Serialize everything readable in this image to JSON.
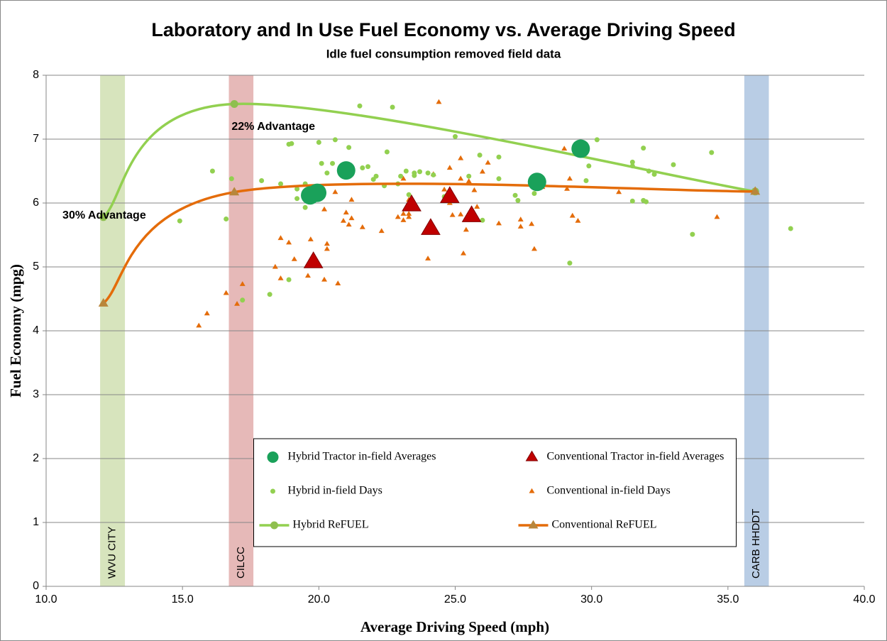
{
  "chart_data": {
    "type": "scatter",
    "title": "Laboratory and In Use Fuel Economy vs. Average Driving Speed",
    "subtitle": "Idle fuel consumption removed field data",
    "x_label": "Average Driving Speed (mph)",
    "y_label": "Fuel Economy (mpg)",
    "xlim": [
      10,
      40
    ],
    "ylim": [
      0,
      8
    ],
    "xticks": [
      {
        "value": 10,
        "label": "10.0"
      },
      {
        "value": 15,
        "label": "15.0"
      },
      {
        "value": 20,
        "label": "20.0"
      },
      {
        "value": 25,
        "label": "25.0"
      },
      {
        "value": 30,
        "label": "30.0"
      },
      {
        "value": 35,
        "label": "35.0"
      },
      {
        "value": 40,
        "label": "40.0"
      }
    ],
    "yticks": [
      0,
      1,
      2,
      3,
      4,
      5,
      6,
      7,
      8
    ],
    "grid": true,
    "legend": "lower center",
    "bands": [
      {
        "label": "WVU CITY",
        "x": [
          11.98,
          12.89
        ],
        "color": "#d7e4bd"
      },
      {
        "label": "CILCC",
        "x": [
          16.7,
          17.6
        ],
        "color": "#e6b9b8"
      },
      {
        "label": "CARB HHDDT",
        "x": [
          35.6,
          36.5
        ],
        "color": "#b9cde5"
      }
    ],
    "annotations": [
      {
        "text": "22% Advantage",
        "x": 16.8,
        "y": 7.19
      },
      {
        "text": "30% Advantage",
        "x": 10.6,
        "y": 5.8
      }
    ],
    "series": [
      {
        "name": "Hybrid Tractor in-field Averages",
        "color": "#1aa15a",
        "marker": "circle",
        "size": 13,
        "line": false,
        "x": [
          19.68,
          19.94,
          21.0,
          28.0,
          29.6
        ],
        "values": [
          6.12,
          6.16,
          6.51,
          6.33,
          6.85
        ]
      },
      {
        "name": "Conventional Tractor in-field Averages",
        "color": "#c00000",
        "marker": "triangle",
        "size": 13,
        "line": false,
        "x": [
          19.8,
          23.4,
          24.1,
          24.8,
          25.6
        ],
        "values": [
          5.08,
          5.97,
          5.6,
          6.1,
          5.8
        ]
      },
      {
        "name": "Hybrid in-field Days",
        "color": "#92d050",
        "marker": "circle",
        "size": 3.5,
        "line": false,
        "x": [
          14.9,
          16.1,
          16.6,
          16.8,
          17.2,
          17.9,
          18.2,
          18.6,
          18.9,
          19.0,
          18.9,
          19.2,
          19.2,
          19.5,
          19.5,
          20.0,
          20.1,
          20.3,
          20.5,
          20.6,
          21.1,
          21.1,
          21.5,
          21.6,
          21.8,
          22.0,
          22.1,
          22.4,
          22.5,
          22.7,
          22.9,
          23.0,
          23.2,
          23.3,
          23.5,
          23.7,
          23.5,
          24.2,
          24.6,
          25.0,
          25.5,
          25.9,
          26.0,
          26.6,
          26.6,
          27.2,
          27.3,
          27.9,
          29.2,
          29.9,
          29.8,
          30.2,
          31.5,
          31.5,
          31.5,
          31.9,
          31.9,
          32.0,
          32.1,
          32.3,
          33.0,
          33.7,
          34.4,
          37.3,
          24.0,
          19.8
        ],
        "values": [
          5.72,
          6.5,
          5.75,
          6.38,
          4.48,
          6.35,
          4.57,
          6.3,
          6.92,
          6.93,
          4.8,
          6.07,
          6.22,
          5.93,
          6.3,
          6.95,
          6.62,
          6.47,
          6.62,
          6.99,
          6.55,
          6.87,
          7.52,
          6.55,
          6.57,
          6.37,
          6.42,
          6.27,
          6.8,
          7.5,
          6.3,
          6.42,
          6.5,
          6.13,
          6.47,
          6.49,
          6.43,
          6.44,
          6.1,
          7.04,
          6.42,
          6.75,
          5.73,
          6.72,
          6.38,
          6.12,
          6.04,
          6.15,
          5.06,
          6.58,
          6.35,
          6.99,
          6.03,
          6.58,
          6.64,
          6.86,
          6.04,
          6.02,
          6.5,
          6.45,
          6.6,
          5.51,
          6.79,
          5.6,
          6.47,
          6.2
        ]
      },
      {
        "name": "Conventional in-field Days",
        "color": "#e46c0a",
        "marker": "triangle",
        "size": 4,
        "line": false,
        "x": [
          15.6,
          15.9,
          16.6,
          17.0,
          17.2,
          18.4,
          18.6,
          18.6,
          18.9,
          19.1,
          19.6,
          19.7,
          20.0,
          20.2,
          20.2,
          20.3,
          20.3,
          20.6,
          20.7,
          20.9,
          21.0,
          21.1,
          21.2,
          21.2,
          21.6,
          22.3,
          22.9,
          23.1,
          23.1,
          23.2,
          23.3,
          23.3,
          23.3,
          24.0,
          24.2,
          24.4,
          24.6,
          24.8,
          24.8,
          24.9,
          25.2,
          25.2,
          25.2,
          25.3,
          25.4,
          25.5,
          25.7,
          25.8,
          26.0,
          26.6,
          26.2,
          27.4,
          27.4,
          27.8,
          27.9,
          28.2,
          29.0,
          29.1,
          29.2,
          29.3,
          29.5,
          31.0,
          34.6,
          23.1
        ],
        "values": [
          4.08,
          4.27,
          4.59,
          4.42,
          4.73,
          5.0,
          5.45,
          4.82,
          5.38,
          5.12,
          4.86,
          5.43,
          6.2,
          4.8,
          5.9,
          5.36,
          5.28,
          6.17,
          4.74,
          5.72,
          5.85,
          5.66,
          5.76,
          6.05,
          5.62,
          5.56,
          5.78,
          5.83,
          5.73,
          5.91,
          5.78,
          6.05,
          5.83,
          5.13,
          6.45,
          7.58,
          6.21,
          6.55,
          6.0,
          5.81,
          6.7,
          6.38,
          5.82,
          5.21,
          5.58,
          6.34,
          6.2,
          5.94,
          6.49,
          5.68,
          6.63,
          5.63,
          5.74,
          5.67,
          5.28,
          6.25,
          6.85,
          6.22,
          6.38,
          5.8,
          5.72,
          6.17,
          5.78,
          6.38
        ]
      },
      {
        "name": "Hybrid ReFUEL",
        "color": "#92d050",
        "marker_color": "#8fbf4f",
        "marker": "circle",
        "size": 5.5,
        "line": true,
        "x": [
          12.1,
          16.9,
          36.0
        ],
        "values": [
          5.78,
          7.55,
          6.18
        ]
      },
      {
        "name": "Conventional ReFUEL",
        "color": "#e46c0a",
        "marker_color": "#b8863b",
        "marker": "triangle",
        "size": 7,
        "line": true,
        "x": [
          12.1,
          16.9,
          36.0
        ],
        "values": [
          4.43,
          6.17,
          6.18
        ]
      }
    ]
  }
}
